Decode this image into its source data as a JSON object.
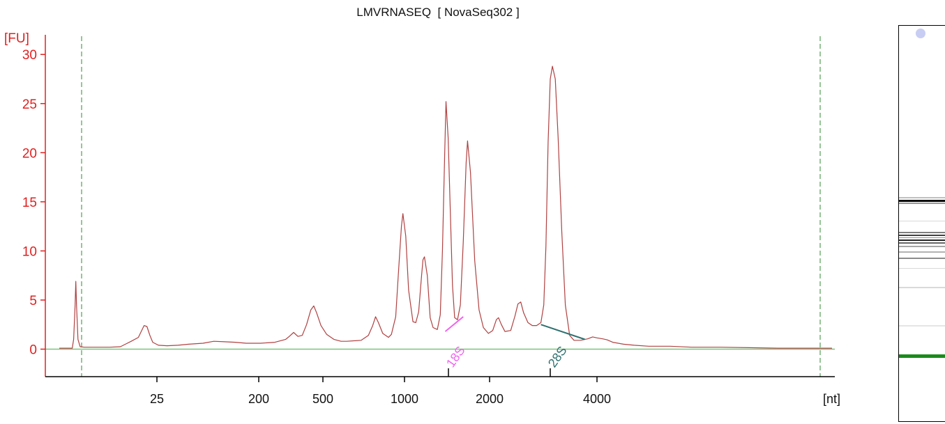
{
  "chart_data": {
    "type": "line",
    "title": "LMVRNASEQ  [ NovaSeq302 ]",
    "ylabel": "[FU]",
    "xlabel": "[nt]",
    "ylim": [
      -2.8,
      32
    ],
    "yticks": [
      0,
      5,
      10,
      15,
      20,
      25,
      30
    ],
    "xticks": [
      "25",
      "200",
      "500",
      "1000",
      "2000",
      "4000"
    ],
    "x_scale": "log",
    "colors": {
      "trace": "#b04040",
      "axis": "#e02020",
      "baseline": "#7cc47c",
      "marker_18s": "#ee66ee",
      "marker_28s": "#2f7070",
      "dashed_lines": "#2e8b2e"
    },
    "markers": [
      {
        "label": "18S",
        "nt": 1478
      },
      {
        "label": "28S",
        "nt": 3120
      }
    ],
    "peaks_nt_fu": [
      [
        25,
        6.9
      ],
      [
        120,
        2.5
      ],
      [
        460,
        1.7
      ],
      [
        530,
        4.4
      ],
      [
        780,
        3.4
      ],
      [
        980,
        13.8
      ],
      [
        1190,
        9.4
      ],
      [
        1390,
        25.2
      ],
      [
        1680,
        21.2
      ],
      [
        2150,
        3.2
      ],
      [
        2700,
        4.8
      ],
      [
        3500,
        28.8
      ],
      [
        4800,
        1.2
      ]
    ],
    "series": [
      {
        "values_fu": [
          [
            0,
            0.1
          ],
          [
            8,
            0.1
          ],
          [
            15,
            0.1
          ],
          [
            18,
            0.1
          ],
          [
            20,
            1.0
          ],
          [
            22,
            4.5
          ],
          [
            23,
            6.9
          ],
          [
            24,
            4.5
          ],
          [
            26,
            1.0
          ],
          [
            29,
            0.25
          ],
          [
            35,
            0.2
          ],
          [
            50,
            0.2
          ],
          [
            70,
            0.2
          ],
          [
            85,
            0.25
          ],
          [
            92,
            0.5
          ],
          [
            100,
            0.8
          ],
          [
            110,
            1.2
          ],
          [
            114,
            1.8
          ],
          [
            118,
            2.4
          ],
          [
            122,
            2.3
          ],
          [
            126,
            1.4
          ],
          [
            130,
            0.7
          ],
          [
            138,
            0.4
          ],
          [
            150,
            0.35
          ],
          [
            165,
            0.4
          ],
          [
            180,
            0.5
          ],
          [
            200,
            0.6
          ],
          [
            215,
            0.8
          ],
          [
            230,
            0.75
          ],
          [
            245,
            0.7
          ],
          [
            260,
            0.6
          ],
          [
            280,
            0.6
          ],
          [
            300,
            0.7
          ],
          [
            315,
            1.0
          ],
          [
            320,
            1.3
          ],
          [
            326,
            1.7
          ],
          [
            332,
            1.3
          ],
          [
            338,
            1.4
          ],
          [
            344,
            2.5
          ],
          [
            350,
            4.0
          ],
          [
            354,
            4.4
          ],
          [
            358,
            3.7
          ],
          [
            364,
            2.4
          ],
          [
            372,
            1.5
          ],
          [
            382,
            1.0
          ],
          [
            392,
            0.8
          ],
          [
            400,
            0.8
          ],
          [
            420,
            0.9
          ],
          [
            430,
            1.4
          ],
          [
            436,
            2.4
          ],
          [
            440,
            3.3
          ],
          [
            444,
            2.7
          ],
          [
            450,
            1.6
          ],
          [
            458,
            1.2
          ],
          [
            462,
            1.5
          ],
          [
            468,
            3.3
          ],
          [
            472,
            8.0
          ],
          [
            476,
            12.5
          ],
          [
            478,
            13.8
          ],
          [
            482,
            11.5
          ],
          [
            486,
            6.0
          ],
          [
            492,
            2.8
          ],
          [
            496,
            2.7
          ],
          [
            500,
            3.8
          ],
          [
            504,
            7.5
          ],
          [
            506,
            9.1
          ],
          [
            508,
            9.4
          ],
          [
            512,
            7.5
          ],
          [
            516,
            3.2
          ],
          [
            520,
            2.2
          ],
          [
            526,
            2.0
          ],
          [
            530,
            3.5
          ],
          [
            533,
            10.0
          ],
          [
            536,
            19.5
          ],
          [
            538,
            25.2
          ],
          [
            541,
            21.5
          ],
          [
            544,
            14.0
          ],
          [
            547,
            6.5
          ],
          [
            550,
            3.2
          ],
          [
            554,
            3.0
          ],
          [
            558,
            4.5
          ],
          [
            562,
            11.0
          ],
          [
            566,
            19.0
          ],
          [
            568,
            21.2
          ],
          [
            572,
            18.0
          ],
          [
            578,
            9.0
          ],
          [
            584,
            4.0
          ],
          [
            590,
            2.2
          ],
          [
            597,
            1.6
          ],
          [
            603,
            1.9
          ],
          [
            608,
            3.0
          ],
          [
            611,
            3.2
          ],
          [
            615,
            2.5
          ],
          [
            620,
            1.8
          ],
          [
            628,
            1.9
          ],
          [
            634,
            3.4
          ],
          [
            638,
            4.6
          ],
          [
            642,
            4.8
          ],
          [
            646,
            3.7
          ],
          [
            652,
            2.7
          ],
          [
            658,
            2.4
          ],
          [
            664,
            2.4
          ],
          [
            670,
            2.7
          ],
          [
            674,
            4.5
          ],
          [
            677,
            10.5
          ],
          [
            680,
            21.0
          ],
          [
            683,
            27.5
          ],
          [
            686,
            28.8
          ],
          [
            690,
            27.5
          ],
          [
            694,
            21.5
          ],
          [
            699,
            12.0
          ],
          [
            704,
            4.5
          ],
          [
            710,
            1.4
          ],
          [
            716,
            0.9
          ],
          [
            725,
            0.9
          ],
          [
            735,
            1.05
          ],
          [
            742,
            1.25
          ],
          [
            748,
            1.15
          ],
          [
            756,
            1.05
          ],
          [
            762,
            0.95
          ],
          [
            770,
            0.7
          ],
          [
            785,
            0.5
          ],
          [
            800,
            0.4
          ],
          [
            820,
            0.3
          ],
          [
            850,
            0.3
          ],
          [
            880,
            0.2
          ],
          [
            920,
            0.2
          ],
          [
            960,
            0.15
          ],
          [
            1000,
            0.1
          ],
          [
            1040,
            0.1
          ],
          [
            1075,
            0.1
          ]
        ]
      }
    ]
  },
  "gel": {
    "band_color": "#000000",
    "marker_band_color": "#1a8a1a",
    "upper_marker_dot_color": "#c8cdf4"
  }
}
